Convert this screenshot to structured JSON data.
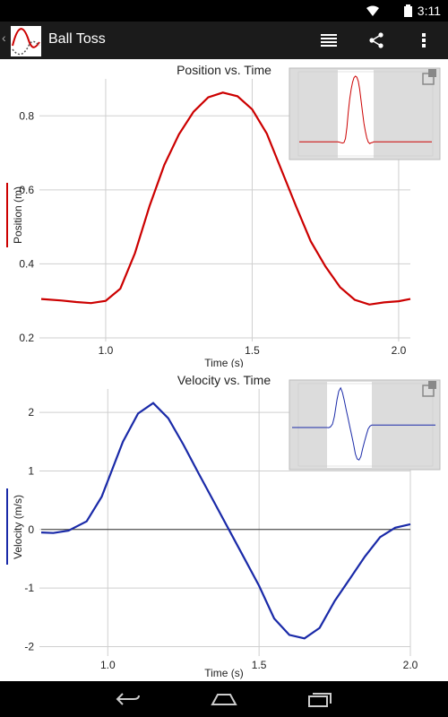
{
  "status_bar": {
    "time": "3:11",
    "wifi_icon": "wifi-icon",
    "battery_icon": "battery-icon"
  },
  "action_bar": {
    "title": "Ball Toss",
    "app_icon": "ball-toss-app-icon",
    "actions": [
      {
        "name": "view-list-button",
        "icon": "list-icon"
      },
      {
        "name": "share-button",
        "icon": "share-icon"
      },
      {
        "name": "overflow-menu-button",
        "icon": "overflow-dots-icon"
      }
    ]
  },
  "navigation_bar": [
    "back-button",
    "home-button",
    "recent-apps-button"
  ],
  "colors": {
    "position": "#cc0000",
    "velocity": "#1a2aa8",
    "grid": "#cfcfcf",
    "overview_bg": "#dcdcdc"
  },
  "chart_data": [
    {
      "type": "line",
      "title": "Position vs. Time",
      "xlabel": "Time (s)",
      "ylabel": "Position (m)",
      "xlim": [
        0.78,
        2.04
      ],
      "ylim": [
        0.2,
        0.9
      ],
      "xticks": [
        "1.0",
        "1.5",
        "2.0"
      ],
      "yticks": [
        "0.2",
        "0.4",
        "0.6",
        "0.8"
      ],
      "xtick_values": [
        1.0,
        1.5,
        2.0
      ],
      "ytick_values": [
        0.2,
        0.4,
        0.6,
        0.8
      ],
      "grid": true,
      "series": [
        {
          "name": "Position",
          "x": [
            0.78,
            0.85,
            0.9,
            0.95,
            1.0,
            1.05,
            1.1,
            1.15,
            1.2,
            1.25,
            1.3,
            1.35,
            1.4,
            1.45,
            1.5,
            1.55,
            1.6,
            1.65,
            1.7,
            1.75,
            1.8,
            1.85,
            1.9,
            1.95,
            2.0,
            2.04
          ],
          "values": [
            0.305,
            0.301,
            0.297,
            0.294,
            0.3,
            0.333,
            0.429,
            0.557,
            0.667,
            0.75,
            0.811,
            0.85,
            0.863,
            0.853,
            0.818,
            0.752,
            0.654,
            0.555,
            0.461,
            0.393,
            0.337,
            0.303,
            0.29,
            0.296,
            0.299,
            0.305
          ]
        }
      ]
    },
    {
      "type": "line",
      "title": "Velocity vs. Time",
      "xlabel": "Time (s)",
      "ylabel": "Velocity (m/s)",
      "xlim": [
        0.78,
        2.0
      ],
      "ylim": [
        -2.1,
        2.4
      ],
      "xticks": [
        "1.0",
        "1.5",
        "2.0"
      ],
      "yticks": [
        "2",
        "1",
        "0",
        "-1",
        "-2"
      ],
      "xtick_values": [
        1.0,
        1.5,
        2.0
      ],
      "ytick_values": [
        2,
        1,
        0,
        -1,
        -2
      ],
      "grid": true,
      "zero_line": true,
      "series": [
        {
          "name": "Velocity",
          "x": [
            0.78,
            0.82,
            0.87,
            0.93,
            0.98,
            1.05,
            1.1,
            1.15,
            1.2,
            1.25,
            1.3,
            1.35,
            1.4,
            1.45,
            1.5,
            1.55,
            1.6,
            1.65,
            1.7,
            1.75,
            1.8,
            1.85,
            1.9,
            1.95,
            2.0
          ],
          "values": [
            -0.05,
            -0.06,
            -0.02,
            0.14,
            0.56,
            1.5,
            1.98,
            2.16,
            1.9,
            1.45,
            0.96,
            0.48,
            0.0,
            -0.48,
            -0.96,
            -1.52,
            -1.8,
            -1.86,
            -1.68,
            -1.22,
            -0.84,
            -0.46,
            -0.13,
            0.03,
            0.09
          ]
        }
      ]
    }
  ]
}
